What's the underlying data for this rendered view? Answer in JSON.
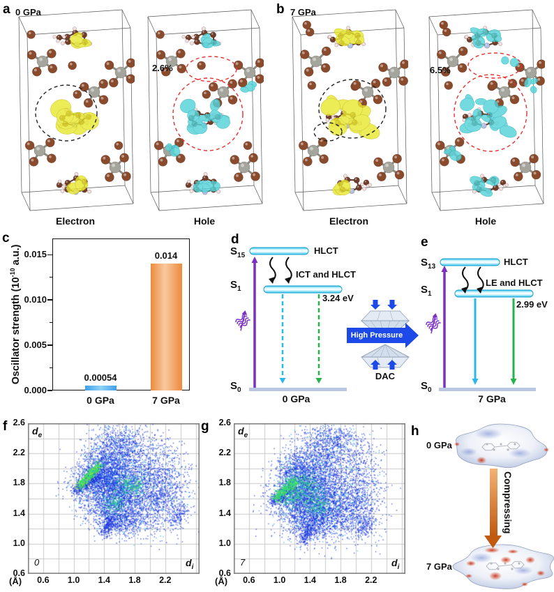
{
  "colors": {
    "electron_iso": "#e9e832",
    "hole_iso": "#55d4da",
    "atom_br": "#8a4a2c",
    "atom_sn": "#a4a69e",
    "atom_h": "#f3dede",
    "atom_n": "#b3c0e6",
    "atom_c": "#6f3d2a",
    "bar_blue": "#3f9fe8",
    "bar_orange": "#ec8b3c",
    "level_cyan": "#2fc4f0",
    "arrow_purple": "#7b2fc4",
    "arrow_cyan": "#29b8ea",
    "arrow_green": "#27b24e",
    "pressure_blue": "#1d49e8",
    "compress_orange": "#c05a10",
    "ground_bar": "#b9c7e2"
  },
  "panel_a": {
    "label": "a",
    "pressure": "0 GPa",
    "left_caption": "Electron",
    "right_caption": "Hole",
    "percent": "2.6%",
    "ellipse_color_electron": "#222222",
    "ellipse_color_hole": "#e83030"
  },
  "panel_b": {
    "label": "b",
    "pressure": "7 GPa",
    "left_caption": "Electron",
    "right_caption": "Hole",
    "percent": "6.5%",
    "ellipse_color_electron": "#222222",
    "ellipse_color_hole": "#e83030"
  },
  "panel_c": {
    "label": "c"
  },
  "panel_d": {
    "label": "d",
    "upper_state": "S",
    "upper_sub": "15",
    "upper_level_label": "HLCT",
    "lower_state": "S",
    "lower_sub": "1",
    "lower_level_label": "ICT and HLCT",
    "energy": "3.24 eV",
    "ground_state": "S",
    "ground_sub": "0",
    "pressure": "0 GPa",
    "emission": "dashed"
  },
  "panel_e": {
    "label": "e",
    "upper_state": "S",
    "upper_sub": "13",
    "upper_level_label": "HLCT",
    "lower_state": "S",
    "lower_sub": "1",
    "lower_level_label": "LE and HLCT",
    "energy": "2.99 eV",
    "ground_state": "S",
    "ground_sub": "0",
    "pressure": "7 GPa",
    "emission": "solid"
  },
  "dac": {
    "arrow_label": "High Pressure",
    "caption": "DAC"
  },
  "panel_f": {
    "label": "f"
  },
  "panel_g": {
    "label": "g"
  },
  "panel_h": {
    "label": "h",
    "top_pressure": "0 GPa",
    "bottom_pressure": "7 GPa",
    "arrow_label": "Compressing"
  },
  "chart_data": [
    {
      "id": "c",
      "type": "bar",
      "categories": [
        "0 GPa",
        "7 GPa"
      ],
      "values": [
        0.00054,
        0.014
      ],
      "value_labels": [
        "0.00054",
        "0.014"
      ],
      "ylabel_parts": [
        "Oscillator strength (10",
        "-10",
        " a.u.)"
      ],
      "yticks": [
        "0.000",
        "0.005",
        "0.010",
        "0.015"
      ],
      "ytick_values": [
        0,
        0.005,
        0.01,
        0.015
      ],
      "minor_step": 0.0025,
      "ylim": [
        0,
        0.0168
      ],
      "grid": false,
      "bar_colors": [
        "#3f9fe8",
        "#ec8b3c"
      ]
    },
    {
      "id": "f",
      "type": "scatter",
      "variant": "hirshfeld-fingerprint",
      "corner_label": "0",
      "xlabel": "d",
      "xlabel_sub": "i",
      "ylabel": "d",
      "ylabel_sub": "e",
      "axis_unit": "(Å)",
      "xticks": [
        0.6,
        1.0,
        1.4,
        1.8,
        2.2
      ],
      "yticks": [
        0.6,
        1.0,
        1.4,
        1.8,
        2.2,
        2.6
      ],
      "xlim": [
        0.4,
        2.65
      ],
      "ylim": [
        0.6,
        2.6
      ],
      "grid_step": 0.2,
      "cloud": {
        "clusters": [
          [
            1.52,
            2.08,
            0.2,
            0.18,
            900
          ],
          [
            1.42,
            1.82,
            0.22,
            0.16,
            1100
          ],
          [
            1.6,
            1.68,
            0.25,
            0.2,
            1100
          ],
          [
            1.5,
            1.45,
            0.2,
            0.15,
            700
          ],
          [
            2.02,
            1.95,
            0.22,
            0.28,
            800
          ],
          [
            2.1,
            1.55,
            0.18,
            0.2,
            500
          ],
          [
            1.68,
            1.28,
            0.15,
            0.1,
            350
          ],
          [
            1.62,
            2.35,
            0.18,
            0.12,
            450
          ],
          [
            1.3,
            1.95,
            0.12,
            0.15,
            500
          ],
          [
            2.25,
            1.75,
            0.15,
            0.2,
            250
          ]
        ],
        "tails": [
          [
            1.0,
            1.7,
            1.3,
            1.92,
            0.035,
            350
          ],
          [
            1.38,
            1.12,
            1.5,
            1.35,
            0.04,
            200
          ],
          [
            2.3,
            1.25,
            2.42,
            1.45,
            0.05,
            120
          ]
        ],
        "streak": [
          1.06,
          1.76,
          1.34,
          2.06,
          0.03,
          500
        ],
        "hotspots": [
          [
            1.74,
            1.78,
            0.1,
            0.07,
            260
          ],
          [
            1.52,
            1.55,
            0.08,
            0.06,
            150
          ]
        ],
        "yellow_frac": 0.12
      }
    },
    {
      "id": "g",
      "type": "scatter",
      "variant": "hirshfeld-fingerprint",
      "corner_label": "7",
      "xlabel": "d",
      "xlabel_sub": "i",
      "ylabel": "d",
      "ylabel_sub": "e",
      "axis_unit": "(Å)",
      "xticks": [
        0.6,
        1.0,
        1.4,
        1.8,
        2.2
      ],
      "yticks": [
        0.6,
        1.0,
        1.4,
        1.8,
        2.2,
        2.6
      ],
      "xlim": [
        0.4,
        2.65
      ],
      "ylim": [
        0.6,
        2.6
      ],
      "grid_step": 0.2,
      "cloud": {
        "clusters": [
          [
            1.38,
            1.88,
            0.2,
            0.18,
            900
          ],
          [
            1.28,
            1.62,
            0.22,
            0.16,
            1100
          ],
          [
            1.5,
            1.5,
            0.25,
            0.2,
            1100
          ],
          [
            1.42,
            1.28,
            0.18,
            0.13,
            600
          ],
          [
            1.85,
            1.8,
            0.25,
            0.33,
            900
          ],
          [
            1.95,
            1.4,
            0.2,
            0.18,
            500
          ],
          [
            1.55,
            2.2,
            0.2,
            0.18,
            600
          ],
          [
            1.2,
            2.0,
            0.12,
            0.12,
            350
          ],
          [
            1.7,
            2.4,
            0.15,
            0.1,
            300
          ],
          [
            2.1,
            1.9,
            0.12,
            0.3,
            250
          ]
        ],
        "tails": [
          [
            0.9,
            1.56,
            1.18,
            1.76,
            0.035,
            350
          ],
          [
            1.3,
            1.02,
            1.42,
            1.25,
            0.04,
            200
          ],
          [
            2.05,
            1.15,
            2.2,
            1.35,
            0.05,
            120
          ]
        ],
        "streak": [
          0.94,
          1.6,
          1.2,
          1.85,
          0.03,
          450
        ],
        "hotspots": [
          [
            1.28,
            1.78,
            0.13,
            0.09,
            350
          ],
          [
            1.5,
            1.52,
            0.09,
            0.07,
            200
          ],
          [
            1.15,
            1.62,
            0.08,
            0.06,
            150
          ]
        ],
        "yellow_frac": 0.06
      }
    }
  ]
}
